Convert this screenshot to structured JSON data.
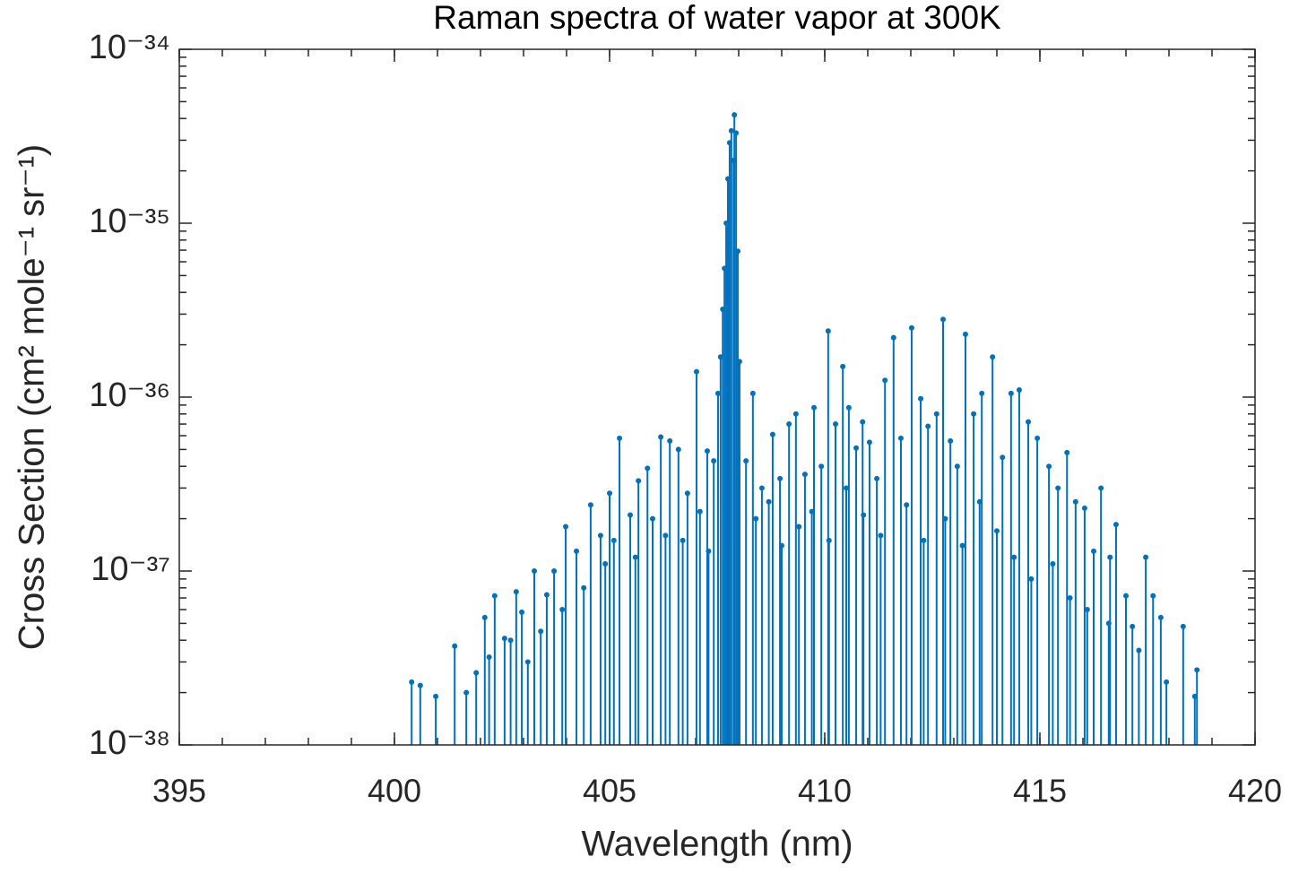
{
  "chart_data": {
    "type": "stem",
    "title": "Raman spectra of water vapor at 300K",
    "xlabel": "Wavelength (nm)",
    "ylabel": "Cross Section (cm² mole⁻¹ sr⁻¹)",
    "yscale": "log",
    "xlim": [
      395,
      420
    ],
    "xticks": [
      395,
      400,
      405,
      410,
      415,
      420
    ],
    "ylim": [
      1e-38,
      1e-34
    ],
    "yticks": [
      {
        "value": 1e-38,
        "label": "10⁻³⁸"
      },
      {
        "value": 1e-37,
        "label": "10⁻³⁷"
      },
      {
        "value": 1e-36,
        "label": "10⁻³⁶"
      },
      {
        "value": 1e-35,
        "label": "10⁻³⁵"
      },
      {
        "value": 1e-34,
        "label": "10⁻³⁴"
      }
    ],
    "color": "#0072BD",
    "x": [
      400.4,
      400.6,
      400.96,
      401.4,
      401.67,
      401.9,
      402.1,
      402.33,
      402.56,
      402.83,
      402.96,
      403.25,
      403.54,
      403.71,
      403.98,
      404.23,
      404.56,
      404.79,
      405.0,
      405.23,
      405.48,
      405.67,
      405.88,
      406.19,
      406.4,
      406.6,
      406.81,
      407.02,
      407.27,
      407.42,
      407.52,
      407.58,
      407.63,
      407.67,
      407.71,
      407.75,
      407.79,
      407.83,
      407.88,
      407.9,
      407.94,
      407.98,
      408.02,
      408.17,
      408.33,
      408.54,
      408.79,
      408.96,
      409.17,
      409.33,
      409.54,
      409.75,
      409.92,
      410.08,
      410.25,
      410.42,
      410.56,
      410.73,
      410.88,
      411.04,
      411.21,
      411.4,
      411.6,
      411.77,
      412.02,
      412.23,
      412.4,
      412.6,
      412.75,
      412.92,
      413.08,
      413.27,
      413.46,
      413.65,
      413.9,
      414.13,
      414.33,
      414.52,
      414.73,
      414.94,
      415.21,
      415.42,
      415.63,
      415.83,
      416.04,
      416.25,
      416.42,
      416.63,
      416.77,
      417.0,
      417.15,
      417.46,
      417.63,
      417.81,
      417.94,
      418.33,
      418.65,
      418.6,
      403.4,
      403.9,
      404.4,
      404.9,
      405.1,
      405.6,
      406.0,
      406.3,
      406.7,
      407.1,
      407.3,
      408.4,
      408.7,
      409.0,
      409.4,
      409.7,
      410.1,
      410.5,
      410.9,
      411.3,
      411.9,
      412.3,
      412.8,
      413.2,
      413.6,
      414.0,
      414.4,
      414.8,
      415.3,
      415.7,
      416.1,
      416.6,
      417.3,
      402.2,
      402.7,
      403.1
    ],
    "values": [
      2.3e-38,
      2.2e-38,
      1.9e-38,
      3.7e-38,
      2e-38,
      2.6e-38,
      5.4e-38,
      7.2e-38,
      4.1e-38,
      7.6e-38,
      5.8e-38,
      1e-37,
      7.3e-38,
      1e-37,
      1.8e-37,
      1.3e-37,
      2.4e-37,
      1.6e-37,
      2.8e-37,
      5.8e-37,
      2.1e-37,
      3.3e-37,
      3.9e-37,
      5.9e-37,
      5.6e-37,
      5e-37,
      2.8e-37,
      1.4e-36,
      4.9e-37,
      4.3e-37,
      1.05e-36,
      1.7e-36,
      3.2e-36,
      5.5e-36,
      1e-35,
      1.8e-35,
      2.9e-35,
      3.4e-35,
      2.3e-35,
      4.2e-35,
      3.3e-35,
      6.9e-36,
      1.6e-36,
      4.3e-37,
      1.05e-36,
      3e-37,
      6.1e-37,
      3.4e-37,
      7e-37,
      8e-37,
      3.6e-37,
      8.7e-37,
      4e-37,
      2.4e-36,
      7e-37,
      1.5e-36,
      8.7e-37,
      5.1e-37,
      7.2e-37,
      5.5e-37,
      3.4e-37,
      1.25e-36,
      2.2e-36,
      5.8e-37,
      2.5e-36,
      9.8e-37,
      6.8e-37,
      8e-37,
      2.8e-36,
      5.6e-37,
      4e-37,
      2.3e-36,
      8e-37,
      1.05e-36,
      1.7e-36,
      4.5e-37,
      1.05e-36,
      1.1e-36,
      7.2e-37,
      5.8e-37,
      4e-37,
      3e-37,
      4.8e-37,
      2.5e-37,
      2.3e-37,
      1.3e-37,
      3e-37,
      1.2e-37,
      1.85e-37,
      7.2e-38,
      4.8e-38,
      1.2e-37,
      7.2e-38,
      5.4e-38,
      2.3e-38,
      4.8e-38,
      2.7e-38,
      1.9e-38,
      4.5e-38,
      6e-38,
      8e-38,
      1.1e-37,
      1.5e-37,
      1.2e-37,
      2e-37,
      1.6e-37,
      1.5e-37,
      2.2e-37,
      1.3e-37,
      2e-37,
      2.5e-37,
      1.4e-37,
      1.8e-37,
      2.2e-37,
      1.5e-37,
      3e-37,
      2.1e-37,
      1.6e-37,
      2.4e-37,
      1.5e-37,
      2e-37,
      1.4e-37,
      2.5e-37,
      1.7e-37,
      1.2e-37,
      9e-38,
      1.1e-37,
      7e-38,
      6e-38,
      5e-38,
      3.5e-38,
      3.2e-38,
      4e-38,
      3e-38
    ]
  }
}
